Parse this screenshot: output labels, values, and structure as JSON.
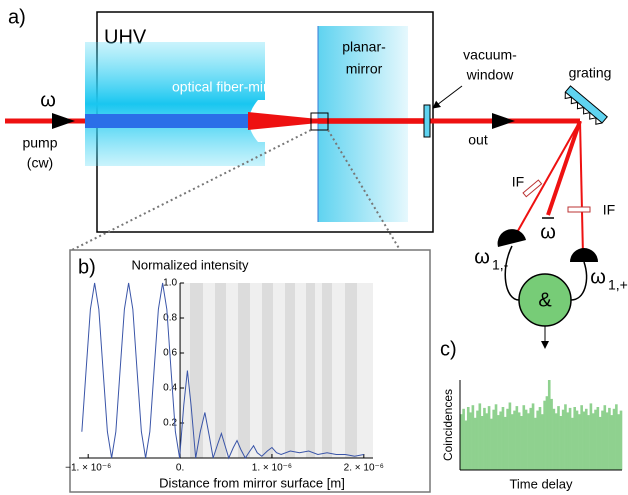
{
  "diagram": {
    "panel_a": "a)",
    "uhv": "UHV",
    "fiber_mirror": "optical fiber-mirror",
    "planar_1": "planar-",
    "planar_2": "mirror",
    "window_1": "vacuum-",
    "window_2": "window",
    "grating": "grating",
    "pump_symbol": "ω",
    "pump_1": "pump",
    "pump_2": "(cw)",
    "out": "out",
    "filter_left": "IF",
    "filter_right": "IF",
    "center_symbol": "ω",
    "det_left_symbol": "ω",
    "det_left_sub": "1,-",
    "det_right_symbol": "ω",
    "det_right_sub": "1,+",
    "coincidence": "&",
    "panel_b": "b)",
    "panel_c": "c)"
  },
  "chart_data": [
    {
      "type": "line",
      "title": "Normalized intensity",
      "x_label": "Distance from mirror surface [m]",
      "color": "#3a55a8",
      "xlim": [
        -1.1e-06,
        2.1e-06
      ],
      "ylim": [
        0,
        1
      ],
      "xticks": [
        {
          "value": -1e-06,
          "label": "−1. × 10⁻⁶"
        },
        {
          "value": 0,
          "label": "0."
        },
        {
          "value": 1e-06,
          "label": "1. × 10⁻⁶"
        },
        {
          "value": 2e-06,
          "label": "2. × 10⁻⁶"
        }
      ],
      "yticks": [
        0.2,
        0.4,
        0.6,
        0.8,
        {
          "value": 1,
          "label": "1.0"
        }
      ],
      "x": [
        -1.069e-06,
        -1.023e-06,
        -9.76e-07,
        -9.3e-07,
        -8.84e-07,
        -8.38e-07,
        -7.91e-07,
        -7.45e-07,
        -6.99e-07,
        -6.53e-07,
        -6.06e-07,
        -5.6e-07,
        -5.14e-07,
        -4.68e-07,
        -4.21e-07,
        -3.75e-07,
        -3.29e-07,
        -2.83e-07,
        -2.36e-07,
        -1.9e-07,
        -1.44e-07,
        -9.8e-08,
        -5.1e-08,
        -5e-09,
        4e-08,
        8e-08,
        1.2e-07,
        1.7e-07,
        2.2e-07,
        2.7e-07,
        3.2e-07,
        3.6e-07,
        4.1e-07,
        4.5e-07,
        4.9e-07,
        5.3e-07,
        5.8e-07,
        6.2e-07,
        6.6e-07,
        7.1e-07,
        7.6e-07,
        8e-07,
        8.4e-07,
        8.9e-07,
        9.5e-07,
        1e-06,
        1.05e-06,
        1.1e-06,
        1.2e-06,
        1.3e-06,
        1.4e-06,
        1.5e-06,
        1.6e-06,
        1.7e-06,
        1.8e-06,
        1.9e-06,
        2e-06
      ],
      "values": [
        0.15,
        0.5,
        0.85,
        1,
        0.85,
        0.5,
        0.15,
        0,
        0.15,
        0.5,
        0.85,
        1,
        0.85,
        0.5,
        0.15,
        0,
        0.15,
        0.5,
        0.85,
        1,
        0.85,
        0.5,
        0.15,
        0,
        0.3,
        0.5,
        0.3,
        0,
        0.15,
        0.26,
        0.12,
        0,
        0.08,
        0.14,
        0.07,
        0,
        0.06,
        0.1,
        0.05,
        0,
        0.04,
        0.07,
        0.03,
        0.01,
        0.04,
        0.06,
        0.03,
        0.02,
        0.04,
        0.03,
        0.04,
        0.02,
        0.03,
        0.02,
        0.02,
        0.01,
        0.02
      ]
    },
    {
      "type": "bar",
      "y_label": "Coincidences",
      "x_label": "Time delay",
      "color": "#8fd18f",
      "ylim": [
        0,
        100
      ],
      "values": [
        62,
        68,
        55,
        70,
        64,
        72,
        58,
        66,
        74,
        60,
        69,
        63,
        71,
        57,
        67,
        73,
        61,
        65,
        70,
        59,
        68,
        75,
        62,
        66,
        71,
        64,
        60,
        72,
        67,
        63,
        69,
        74,
        58,
        66,
        70,
        62,
        77,
        82,
        100,
        79,
        68,
        63,
        71,
        60,
        67,
        73,
        64,
        69,
        58,
        70,
        66,
        62,
        72,
        65,
        68,
        61,
        74,
        63,
        67,
        70,
        59,
        66,
        72,
        64,
        69,
        61,
        68,
        73,
        62,
        66
      ]
    }
  ]
}
